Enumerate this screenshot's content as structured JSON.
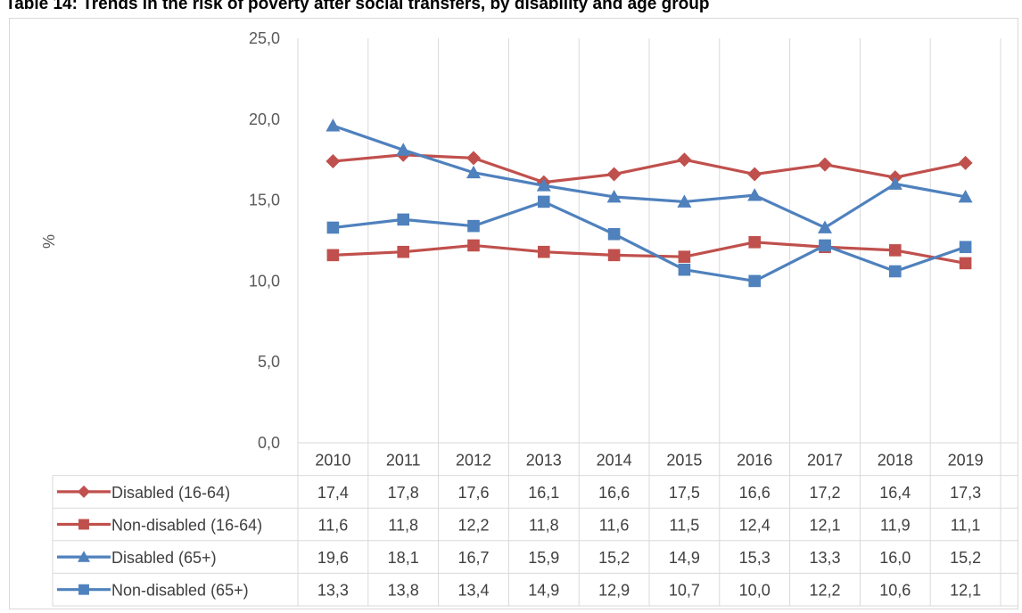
{
  "chart_data": {
    "type": "line",
    "title": "Table 14: Trends in the risk of poverty after social transfers, by disability and age group",
    "ylabel": "%",
    "xlabel": "",
    "ylim": [
      0,
      25
    ],
    "yticks": [
      "0,0",
      "5,0",
      "10,0",
      "15,0",
      "20,0",
      "25,0"
    ],
    "categories": [
      "2010",
      "2011",
      "2012",
      "2013",
      "2014",
      "2015",
      "2016",
      "2017",
      "2018",
      "2019"
    ],
    "grid": "vertical",
    "legend": "data-table-below",
    "series": [
      {
        "name": "Disabled (16-64)",
        "color": "#c0504d",
        "marker": "diamond",
        "values": [
          17.4,
          17.8,
          17.6,
          16.1,
          16.6,
          17.5,
          16.6,
          17.2,
          16.4,
          17.3
        ],
        "labels": [
          "17,4",
          "17,8",
          "17,6",
          "16,1",
          "16,6",
          "17,5",
          "16,6",
          "17,2",
          "16,4",
          "17,3"
        ]
      },
      {
        "name": "Non-disabled (16-64)",
        "color": "#c0504d",
        "marker": "square",
        "values": [
          11.6,
          11.8,
          12.2,
          11.8,
          11.6,
          11.5,
          12.4,
          12.1,
          11.9,
          11.1
        ],
        "labels": [
          "11,6",
          "11,8",
          "12,2",
          "11,8",
          "11,6",
          "11,5",
          "12,4",
          "12,1",
          "11,9",
          "11,1"
        ]
      },
      {
        "name": "Disabled (65+)",
        "color": "#4f81bd",
        "marker": "triangle",
        "values": [
          19.6,
          18.1,
          16.7,
          15.9,
          15.2,
          14.9,
          15.3,
          13.3,
          16.0,
          15.2
        ],
        "labels": [
          "19,6",
          "18,1",
          "16,7",
          "15,9",
          "15,2",
          "14,9",
          "15,3",
          "13,3",
          "16,0",
          "15,2"
        ]
      },
      {
        "name": "Non-disabled (65+)",
        "color": "#4f81bd",
        "marker": "square",
        "values": [
          13.3,
          13.8,
          13.4,
          14.9,
          12.9,
          10.7,
          10.0,
          12.2,
          10.6,
          12.1
        ],
        "labels": [
          "13,3",
          "13,8",
          "13,4",
          "14,9",
          "12,9",
          "10,7",
          "10,0",
          "12,2",
          "10,6",
          "12,1"
        ]
      }
    ]
  }
}
